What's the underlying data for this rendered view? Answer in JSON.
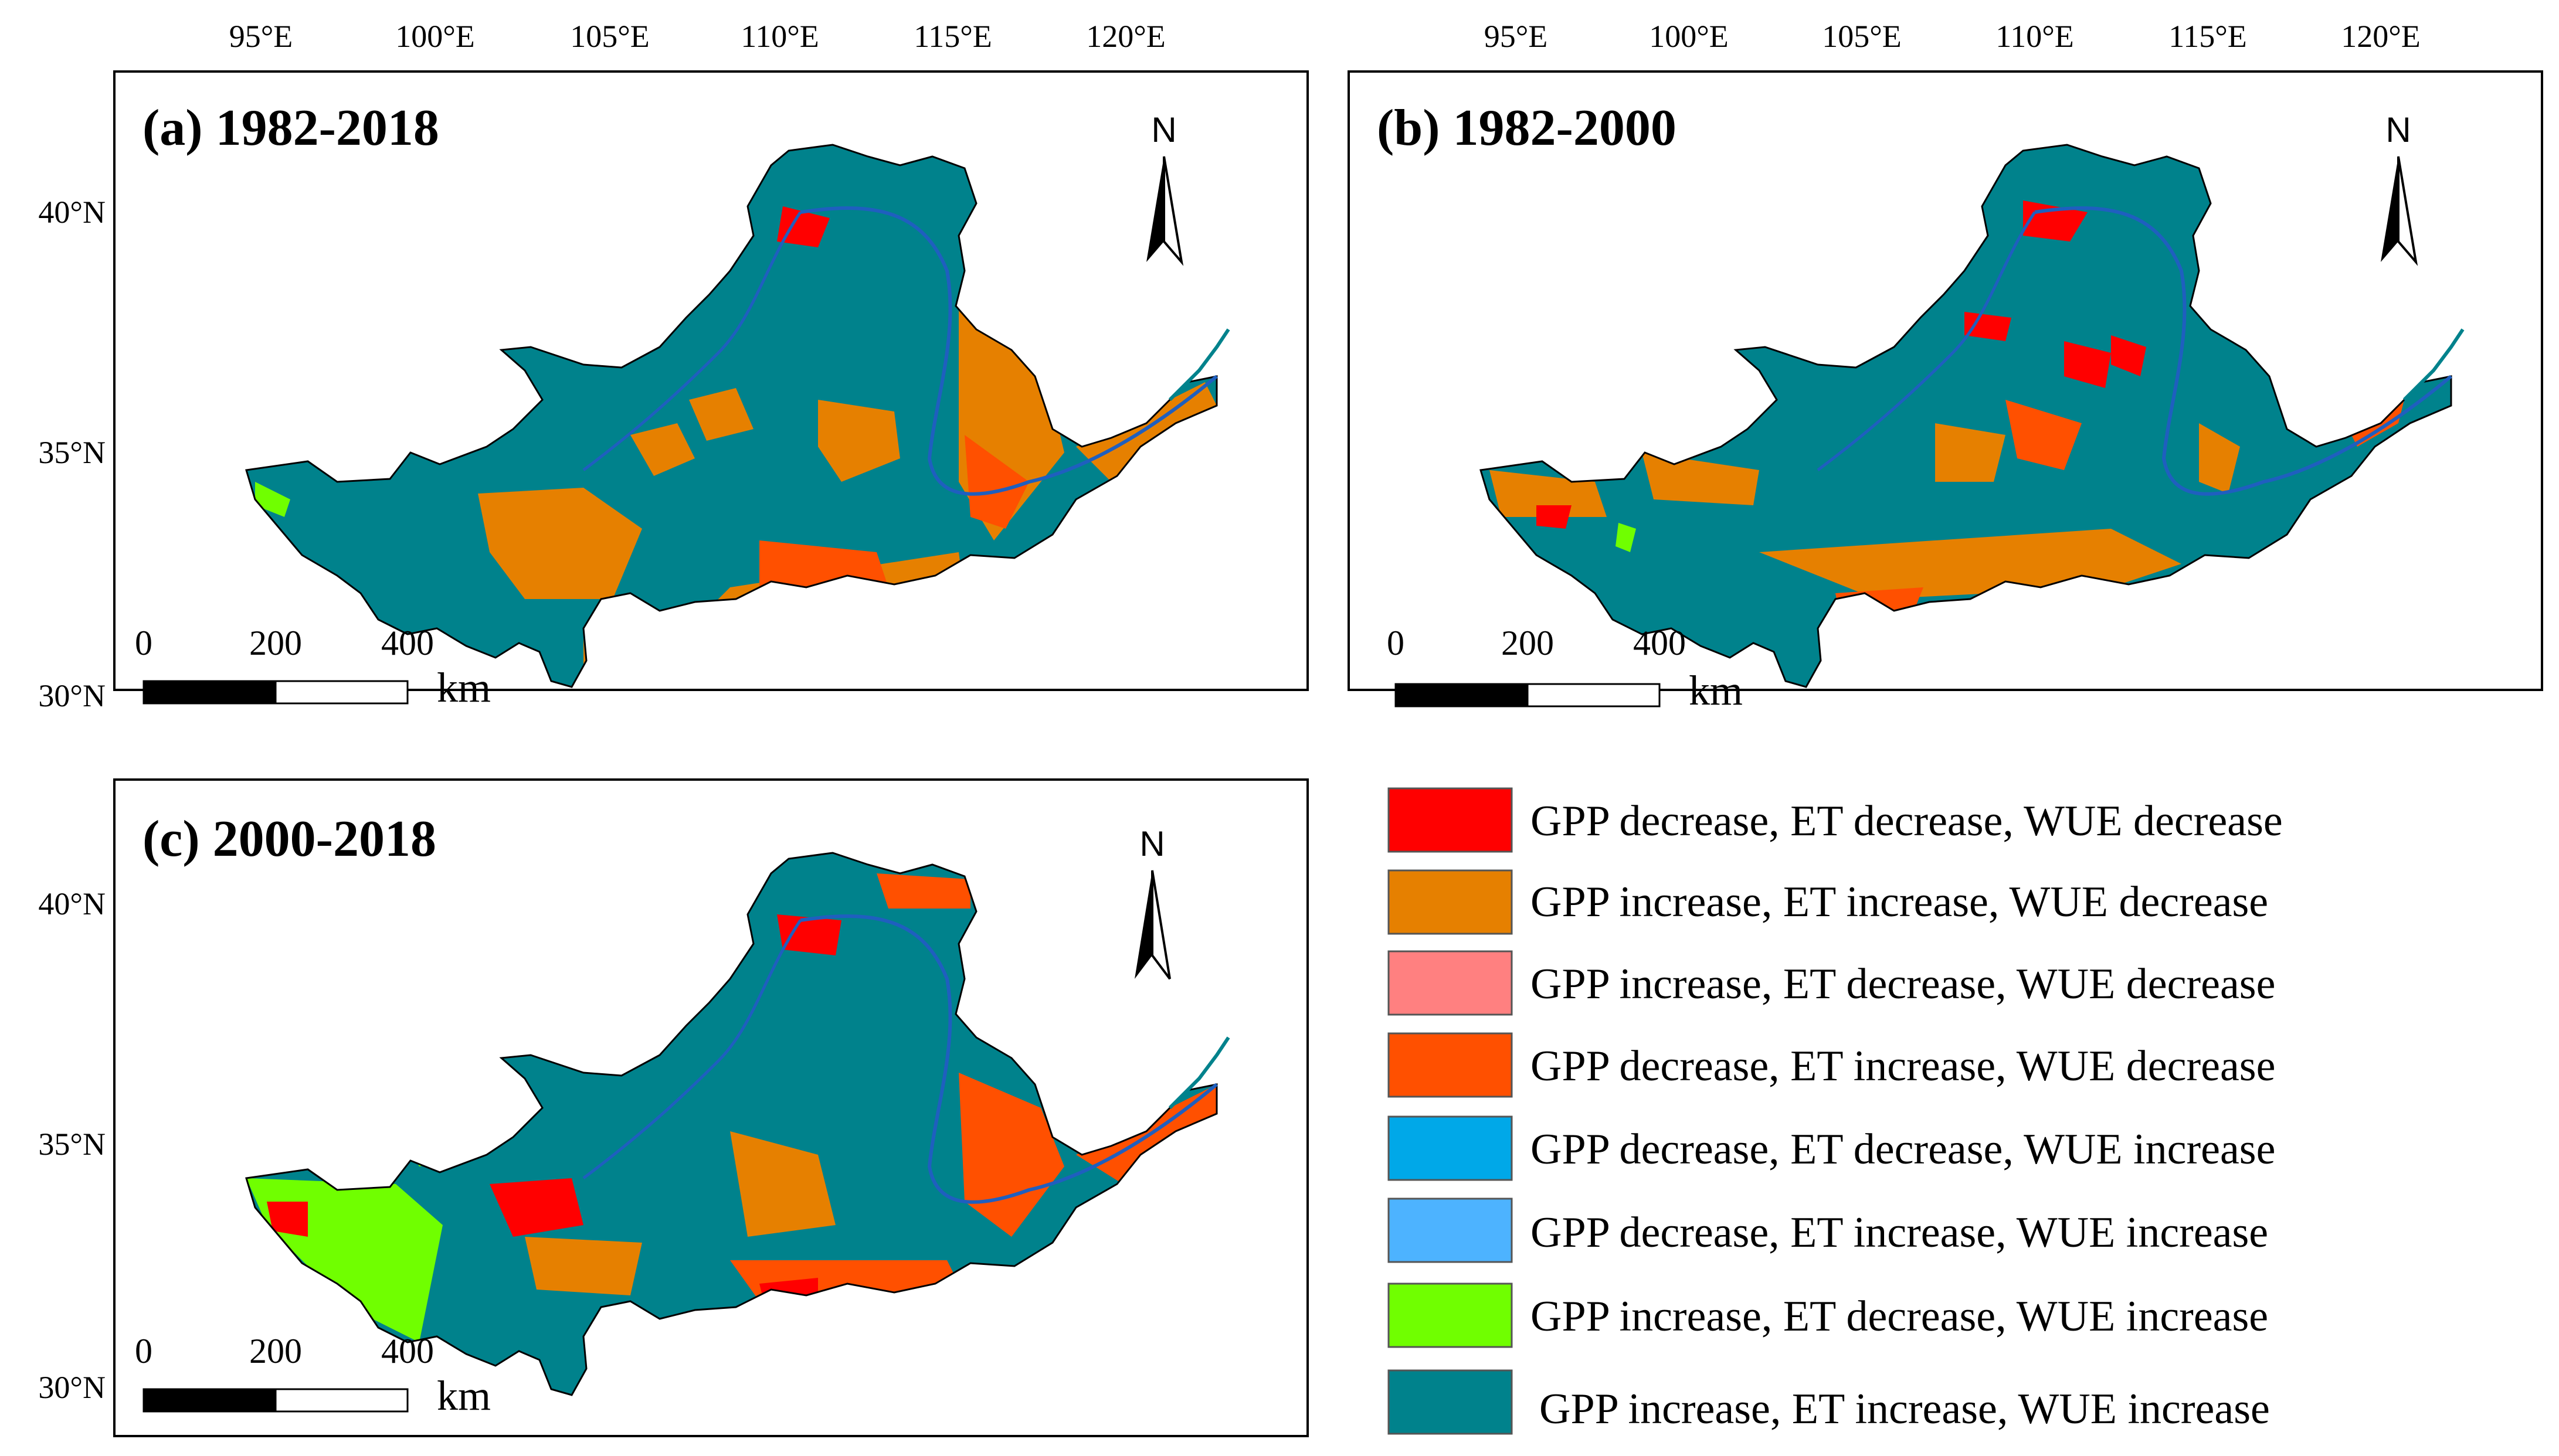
{
  "panels": [
    {
      "id": "a",
      "title": "(a) 1982-2018"
    },
    {
      "id": "b",
      "title": "(b) 1982-2000"
    },
    {
      "id": "c",
      "title": "(c) 2000-2018"
    }
  ],
  "lon_ticks": [
    "95°E",
    "100°E",
    "105°E",
    "110°E",
    "115°E",
    "120°E"
  ],
  "lat_ticks": [
    "40°N",
    "35°N",
    "30°N"
  ],
  "north_arrow": "N",
  "scale_bar": {
    "labels": [
      "0",
      "200",
      "400"
    ],
    "unit": "km"
  },
  "legend": {
    "items": [
      {
        "label": "GPP decrease, ET decrease, WUE decrease",
        "color": "#ff0000"
      },
      {
        "label": "GPP increase, ET increase, WUE decrease",
        "color": "#e68000"
      },
      {
        "label": "GPP increase, ET decrease, WUE decrease",
        "color": "#ff8080"
      },
      {
        "label": "GPP decrease, ET increase, WUE decrease",
        "color": "#ff5000"
      },
      {
        "label": "GPP decrease, ET decrease, WUE increase",
        "color": "#00a8e8"
      },
      {
        "label": "GPP decrease, ET increase, WUE increase",
        "color": "#4db3ff"
      },
      {
        "label": "GPP increase, ET decrease, WUE increase",
        "color": "#70ff00"
      },
      {
        "label": "GPP increase, ET increase, WUE increase",
        "color": "#00828c"
      }
    ]
  }
}
